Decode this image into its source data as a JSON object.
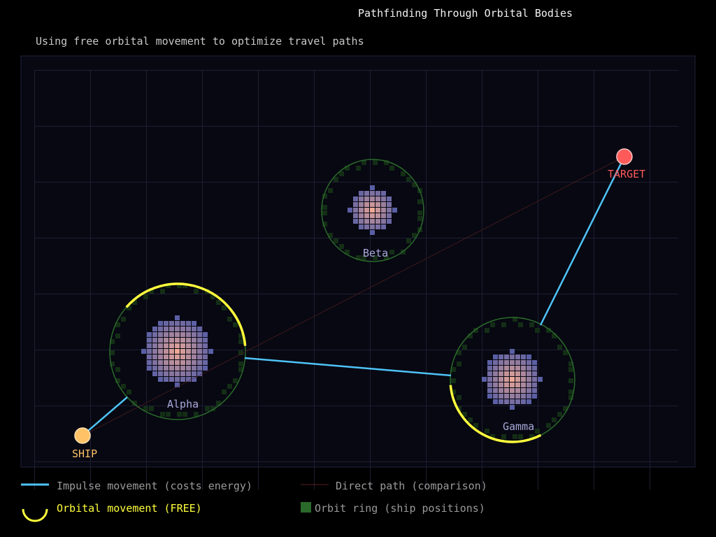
{
  "title": "Pathfinding Through Orbital Bodies",
  "subtitle": "Using free orbital movement to optimize travel paths",
  "colors": {
    "background": "#000000",
    "panel": "#070812",
    "grid": "#1e1e32",
    "impulse": "#4fc3f7",
    "orbital": "#ffff3c",
    "direct": "#5a2020",
    "orbit_ring": "#2a6a2a",
    "ship": "#ffc266",
    "target": "#ff5a5a",
    "planet_label": "#a8a8d8"
  },
  "bodies": [
    {
      "name": "Alpha",
      "cx": 254,
      "cy": 503,
      "size": 6,
      "orbit": 97
    },
    {
      "name": "Beta",
      "cx": 533,
      "cy": 301,
      "size": 4,
      "orbit": 73
    },
    {
      "name": "Gamma",
      "cx": 733,
      "cy": 543,
      "size": 5,
      "orbit": 89
    }
  ],
  "ship": {
    "label": "SHIP"
  },
  "target": {
    "label": "TARGET"
  },
  "legend": {
    "impulse": "Impulse movement (costs energy)",
    "direct": "Direct path (comparison)",
    "orbital": "Orbital movement (FREE)",
    "ring": "Orbit ring (ship positions)"
  }
}
